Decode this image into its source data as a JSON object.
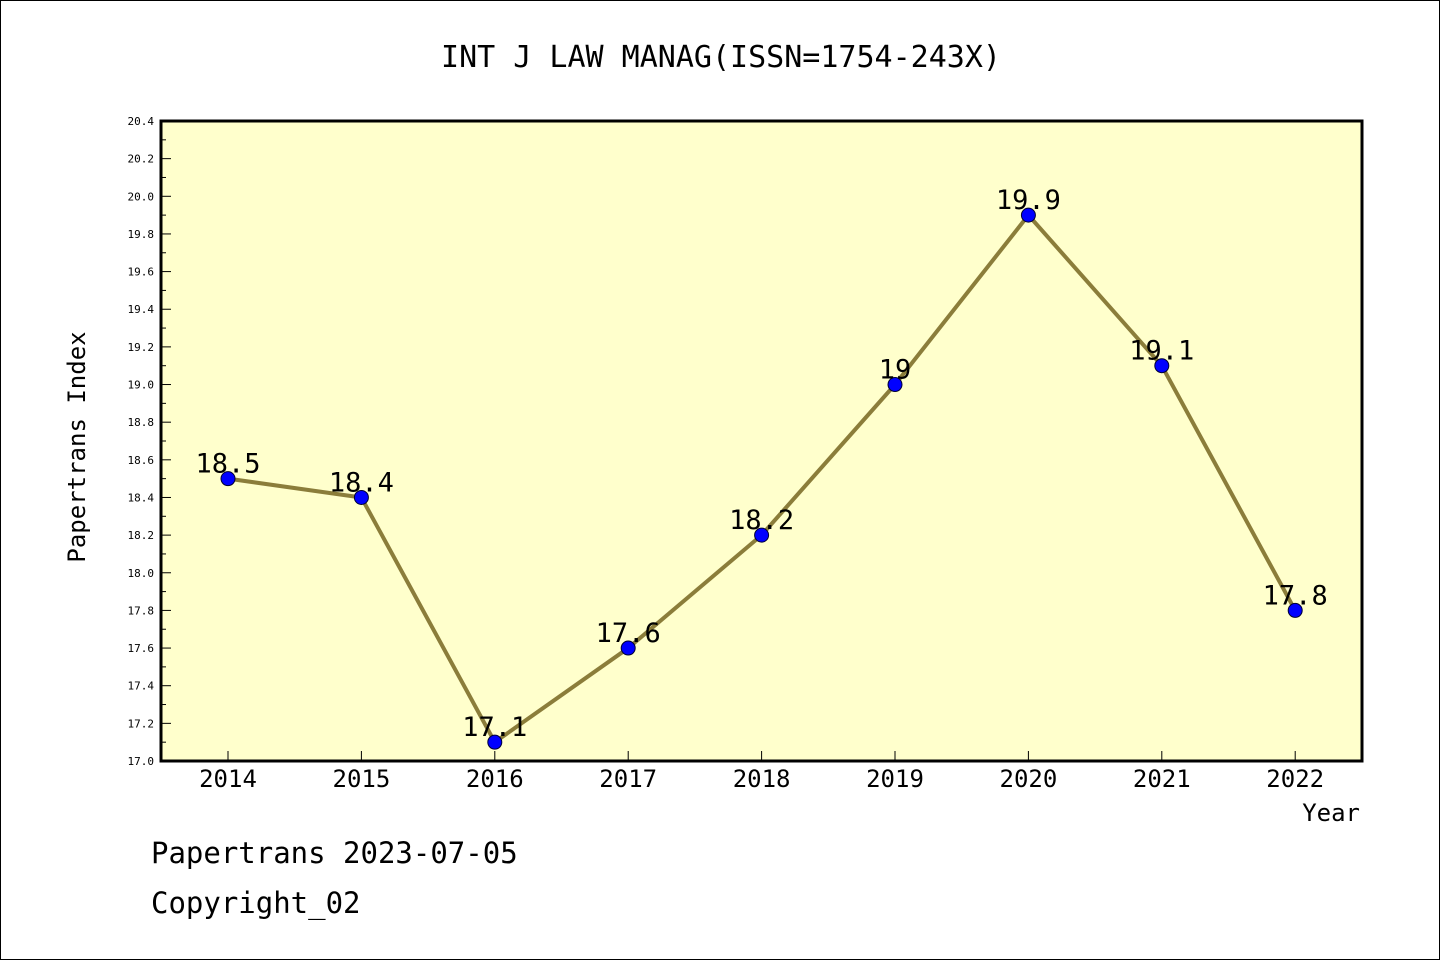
{
  "chart_data": {
    "type": "line",
    "title": "INT J LAW MANAG(ISSN=1754-243X)",
    "xlabel": "Year",
    "ylabel": "Papertrans Index",
    "categories": [
      "2014",
      "2015",
      "2016",
      "2017",
      "2018",
      "2019",
      "2020",
      "2021",
      "2022"
    ],
    "values": [
      18.5,
      18.4,
      17.1,
      17.6,
      18.2,
      19.0,
      19.9,
      19.1,
      17.8
    ],
    "data_labels": [
      "18.5",
      "18.4",
      "17.1",
      "17.6",
      "18.2",
      "19",
      "19.9",
      "19.1",
      "17.8"
    ],
    "ylim": [
      17.0,
      20.4
    ],
    "yticks": [
      "17.0",
      "17.2",
      "17.4",
      "17.6",
      "17.8",
      "18.0",
      "18.2",
      "18.4",
      "18.6",
      "18.8",
      "19.0",
      "19.2",
      "19.4",
      "19.6",
      "19.8",
      "20.0",
      "20.2",
      "20.4"
    ],
    "grid": false,
    "colors": {
      "plot_background": "#ffffcc",
      "line": "#8b7d3a",
      "marker": "#0000ff"
    }
  },
  "footer": {
    "line1": "Papertrans 2023-07-05",
    "line2": "Copyright_02"
  }
}
